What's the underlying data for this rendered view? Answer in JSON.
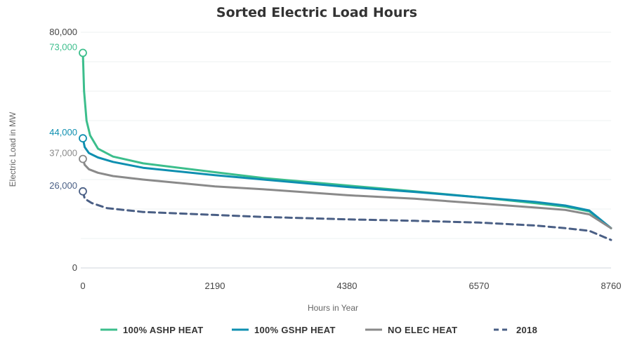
{
  "chart_data": {
    "type": "line",
    "title": "Sorted Electric Load Hours",
    "xlabel": "Hours in Year",
    "ylabel": "Electric Load in MW",
    "xlim": [
      0,
      8760
    ],
    "ylim": [
      0,
      80000
    ],
    "x_ticks": [
      "0",
      "2190",
      "4380",
      "6570",
      "8760"
    ],
    "y_ticks": [
      "0",
      "80,000"
    ],
    "grid": true,
    "legend_position": "bottom",
    "series": [
      {
        "name": "100% ASHP HEAT",
        "color": "#3cbe8c",
        "dash": "solid",
        "peak_label": "73,000",
        "points": [
          [
            0,
            73000
          ],
          [
            20,
            60000
          ],
          [
            60,
            50000
          ],
          [
            120,
            45000
          ],
          [
            250,
            40500
          ],
          [
            500,
            37800
          ],
          [
            1000,
            35500
          ],
          [
            2190,
            32500
          ],
          [
            3000,
            30500
          ],
          [
            4380,
            28000
          ],
          [
            5500,
            26000
          ],
          [
            6570,
            24000
          ],
          [
            7500,
            22000
          ],
          [
            8000,
            20800
          ],
          [
            8400,
            19200
          ],
          [
            8760,
            13500
          ]
        ]
      },
      {
        "name": "100% GSHP HEAT",
        "color": "#0e8fb0",
        "dash": "solid",
        "peak_label": "44,000",
        "points": [
          [
            0,
            44000
          ],
          [
            30,
            41000
          ],
          [
            100,
            39000
          ],
          [
            250,
            37500
          ],
          [
            500,
            36000
          ],
          [
            1000,
            34000
          ],
          [
            2190,
            31500
          ],
          [
            3000,
            30000
          ],
          [
            4380,
            27500
          ],
          [
            5500,
            25800
          ],
          [
            6570,
            24000
          ],
          [
            7500,
            22400
          ],
          [
            8000,
            21200
          ],
          [
            8400,
            19500
          ],
          [
            8760,
            13500
          ]
        ]
      },
      {
        "name": "NO ELEC HEAT",
        "color": "#8a8a8a",
        "dash": "solid",
        "peak_label": "37,000",
        "points": [
          [
            0,
            37000
          ],
          [
            30,
            35000
          ],
          [
            100,
            33500
          ],
          [
            250,
            32300
          ],
          [
            500,
            31200
          ],
          [
            1000,
            30000
          ],
          [
            2190,
            27700
          ],
          [
            3000,
            26700
          ],
          [
            4380,
            24700
          ],
          [
            5500,
            23500
          ],
          [
            6570,
            21900
          ],
          [
            7500,
            20500
          ],
          [
            8000,
            19700
          ],
          [
            8400,
            18200
          ],
          [
            8760,
            13500
          ]
        ]
      },
      {
        "name": "2018",
        "color": "#4a5f85",
        "dash": "dashed",
        "peak_label": "26,000",
        "points": [
          [
            0,
            26000
          ],
          [
            30,
            23500
          ],
          [
            150,
            22000
          ],
          [
            400,
            20300
          ],
          [
            1000,
            19000
          ],
          [
            2190,
            18000
          ],
          [
            3000,
            17300
          ],
          [
            4380,
            16500
          ],
          [
            5500,
            16000
          ],
          [
            6570,
            15400
          ],
          [
            7500,
            14400
          ],
          [
            8000,
            13500
          ],
          [
            8400,
            12600
          ],
          [
            8760,
            9500
          ]
        ]
      }
    ]
  }
}
